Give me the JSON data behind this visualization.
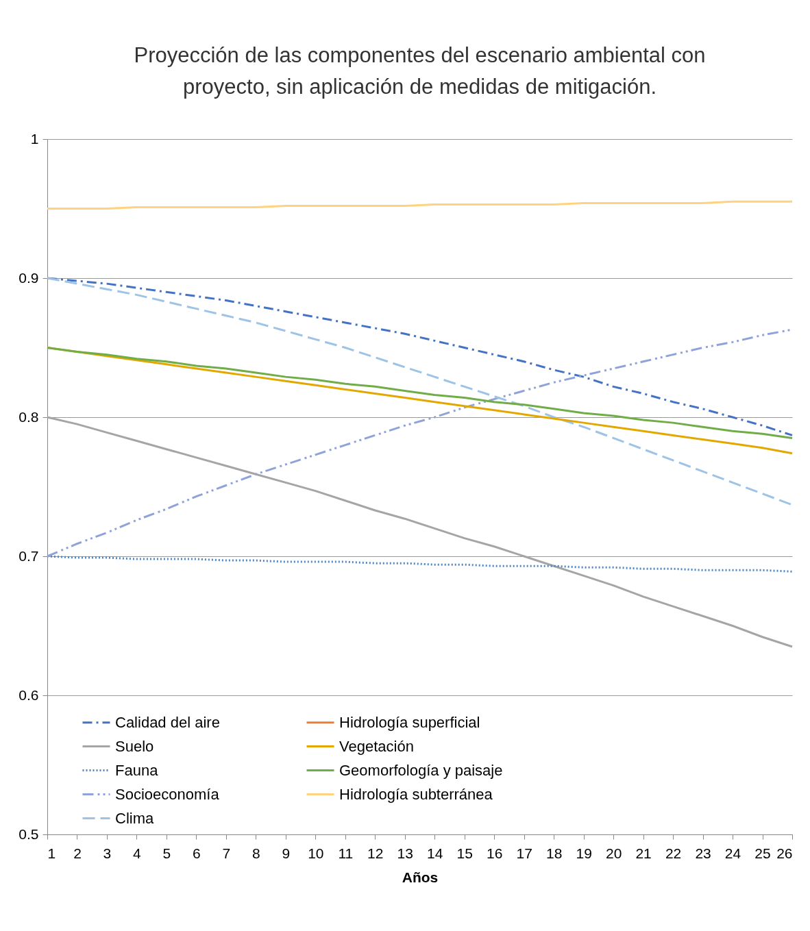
{
  "chart_data": {
    "type": "line",
    "title": "Proyección de las componentes del escenario ambiental  con proyecto, sin aplicación de medidas de mitigación.",
    "xlabel": "Años",
    "x": [
      1,
      2,
      3,
      4,
      5,
      6,
      7,
      8,
      9,
      10,
      11,
      12,
      13,
      14,
      15,
      16,
      17,
      18,
      19,
      20,
      21,
      22,
      23,
      24,
      25,
      26
    ],
    "xlim": [
      1,
      26
    ],
    "xticks": [
      1,
      2,
      3,
      4,
      5,
      6,
      7,
      8,
      9,
      10,
      11,
      12,
      13,
      14,
      15,
      16,
      17,
      18,
      19,
      20,
      21,
      22,
      23,
      24,
      25,
      26
    ],
    "ylim": [
      0.5,
      1
    ],
    "yticks": [
      0.5,
      0.6,
      0.7,
      0.8,
      0.9,
      1
    ],
    "grid": "y",
    "legend": "bottom left",
    "marker": "none",
    "series": [
      {
        "name": "Calidad del aire",
        "color": "#4472c4",
        "line_style": "dashdot",
        "values": [
          0.9,
          0.898,
          0.896,
          0.893,
          0.89,
          0.887,
          0.884,
          0.88,
          0.876,
          0.872,
          0.868,
          0.864,
          0.86,
          0.855,
          0.85,
          0.845,
          0.84,
          0.834,
          0.829,
          0.822,
          0.817,
          0.811,
          0.806,
          0.8,
          0.794,
          0.787
        ]
      },
      {
        "name": "Suelo",
        "color": "#a5a5a5",
        "line_style": "solid",
        "values": [
          0.8,
          0.795,
          0.789,
          0.783,
          0.777,
          0.771,
          0.765,
          0.759,
          0.753,
          0.747,
          0.74,
          0.733,
          0.727,
          0.72,
          0.713,
          0.707,
          0.7,
          0.693,
          0.686,
          0.679,
          0.671,
          0.664,
          0.657,
          0.65,
          0.642,
          0.635
        ]
      },
      {
        "name": "Fauna",
        "color": "#4a86c8",
        "line_style": "dotted",
        "values": [
          0.7,
          0.699,
          0.699,
          0.698,
          0.698,
          0.698,
          0.697,
          0.697,
          0.696,
          0.696,
          0.696,
          0.695,
          0.695,
          0.694,
          0.694,
          0.693,
          0.693,
          0.693,
          0.692,
          0.692,
          0.691,
          0.691,
          0.69,
          0.69,
          0.69,
          0.689
        ]
      },
      {
        "name": "Socioeconomía",
        "color": "#8fa3d8",
        "line_style": "dashdotdot",
        "values": [
          0.7,
          0.709,
          0.717,
          0.726,
          0.734,
          0.743,
          0.751,
          0.759,
          0.766,
          0.773,
          0.78,
          0.787,
          0.794,
          0.8,
          0.807,
          0.813,
          0.819,
          0.825,
          0.83,
          0.835,
          0.84,
          0.845,
          0.85,
          0.854,
          0.859,
          0.863
        ]
      },
      {
        "name": "Clima",
        "color": "#9dc3e6",
        "line_style": "dashed",
        "values": [
          0.9,
          0.896,
          0.892,
          0.888,
          0.883,
          0.878,
          0.873,
          0.868,
          0.862,
          0.856,
          0.85,
          0.843,
          0.836,
          0.829,
          0.822,
          0.815,
          0.808,
          0.8,
          0.793,
          0.785,
          0.777,
          0.769,
          0.761,
          0.753,
          0.745,
          0.737
        ]
      },
      {
        "name": "Hidrología superficial",
        "color": "#ed7d31",
        "line_style": "solid",
        "values": [
          null,
          null,
          null,
          null,
          null,
          null,
          null,
          null,
          null,
          null,
          null,
          null,
          null,
          null,
          null,
          null,
          null,
          null,
          null,
          null,
          null,
          null,
          null,
          null,
          null,
          null
        ]
      },
      {
        "name": "Vegetación",
        "color": "#e3a800",
        "line_style": "solid",
        "values": [
          0.85,
          0.847,
          0.844,
          0.841,
          0.838,
          0.835,
          0.832,
          0.829,
          0.826,
          0.823,
          0.82,
          0.817,
          0.814,
          0.811,
          0.808,
          0.805,
          0.802,
          0.799,
          0.796,
          0.793,
          0.79,
          0.787,
          0.784,
          0.781,
          0.778,
          0.774
        ]
      },
      {
        "name": "Geomorfología y paisaje",
        "color": "#70ad47",
        "line_style": "solid",
        "values": [
          0.85,
          0.847,
          0.845,
          0.842,
          0.84,
          0.837,
          0.835,
          0.832,
          0.829,
          0.827,
          0.824,
          0.822,
          0.819,
          0.816,
          0.814,
          0.811,
          0.809,
          0.806,
          0.803,
          0.801,
          0.798,
          0.796,
          0.793,
          0.79,
          0.788,
          0.785
        ]
      },
      {
        "name": "Hidrología subterránea",
        "color": "#ffd280",
        "line_style": "solid",
        "values": [
          0.95,
          0.95,
          0.95,
          0.951,
          0.951,
          0.951,
          0.951,
          0.951,
          0.952,
          0.952,
          0.952,
          0.952,
          0.952,
          0.953,
          0.953,
          0.953,
          0.953,
          0.953,
          0.954,
          0.954,
          0.954,
          0.954,
          0.954,
          0.955,
          0.955,
          0.955
        ]
      }
    ]
  }
}
